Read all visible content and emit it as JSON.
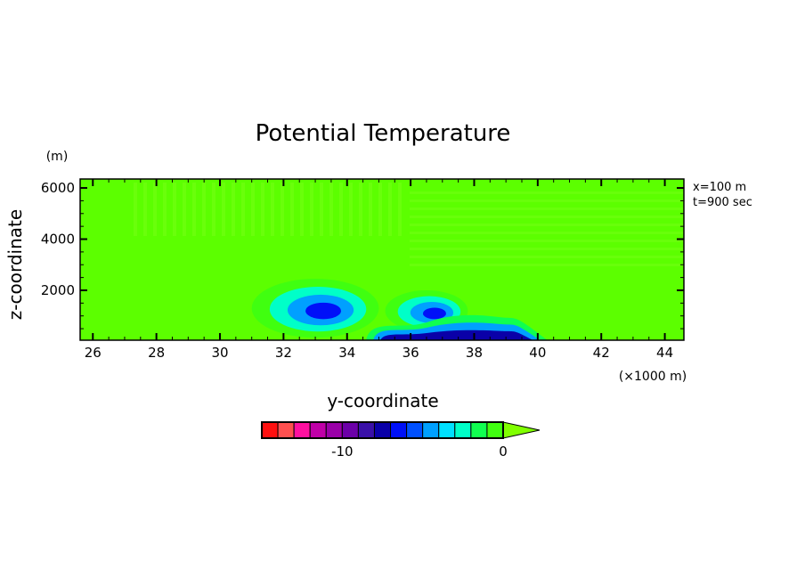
{
  "chart_data": {
    "type": "heatmap",
    "title": "Potential Temperature",
    "xlabel": "y-coordinate",
    "ylabel": "z-coordinate",
    "x_unit_label": "(×1000 m)",
    "y_unit_label": "(m)",
    "xlim": [
      25.6,
      44.6
    ],
    "ylim": [
      50,
      6350
    ],
    "x_ticks": [
      26,
      28,
      30,
      32,
      34,
      36,
      38,
      40,
      42,
      44
    ],
    "y_ticks": [
      2000,
      4000,
      6000
    ],
    "annotations": [
      "x=100 m",
      "t=900 sec"
    ],
    "background_value": 0.5,
    "features": [
      {
        "name": "vortex-1",
        "x": 33.0,
        "z": 1300,
        "rx": 2.0,
        "rz": 1150,
        "levels": [
          -1,
          -3,
          -5,
          -7
        ]
      },
      {
        "name": "vortex-2",
        "x": 36.5,
        "z": 1200,
        "rx": 1.3,
        "rz": 800,
        "levels": [
          -1,
          -3,
          -5,
          -7
        ]
      },
      {
        "name": "cold-pool",
        "x0": 34.6,
        "x1": 40.3,
        "ztop": 900,
        "levels": [
          -2,
          -5,
          -8
        ]
      }
    ],
    "colorbar": {
      "levels": [
        -15,
        -14,
        -13,
        -12,
        -11,
        -10,
        -9,
        -8,
        -7,
        -6,
        -5,
        -4,
        -3,
        -2,
        -1,
        0
      ],
      "tick_labels": [
        {
          "value": -10,
          "label": "-10"
        },
        {
          "value": 0,
          "label": "0"
        }
      ],
      "colors": [
        "#ff1010",
        "#ff5050",
        "#ff10a0",
        "#c000a8",
        "#9a00a8",
        "#6c00a8",
        "#3a10a8",
        "#0a00a8",
        "#0010f8",
        "#0050ff",
        "#00a0ff",
        "#00e0ff",
        "#00ffc8",
        "#10ff50",
        "#40ff10"
      ],
      "extend_color": "#80ff00"
    }
  }
}
